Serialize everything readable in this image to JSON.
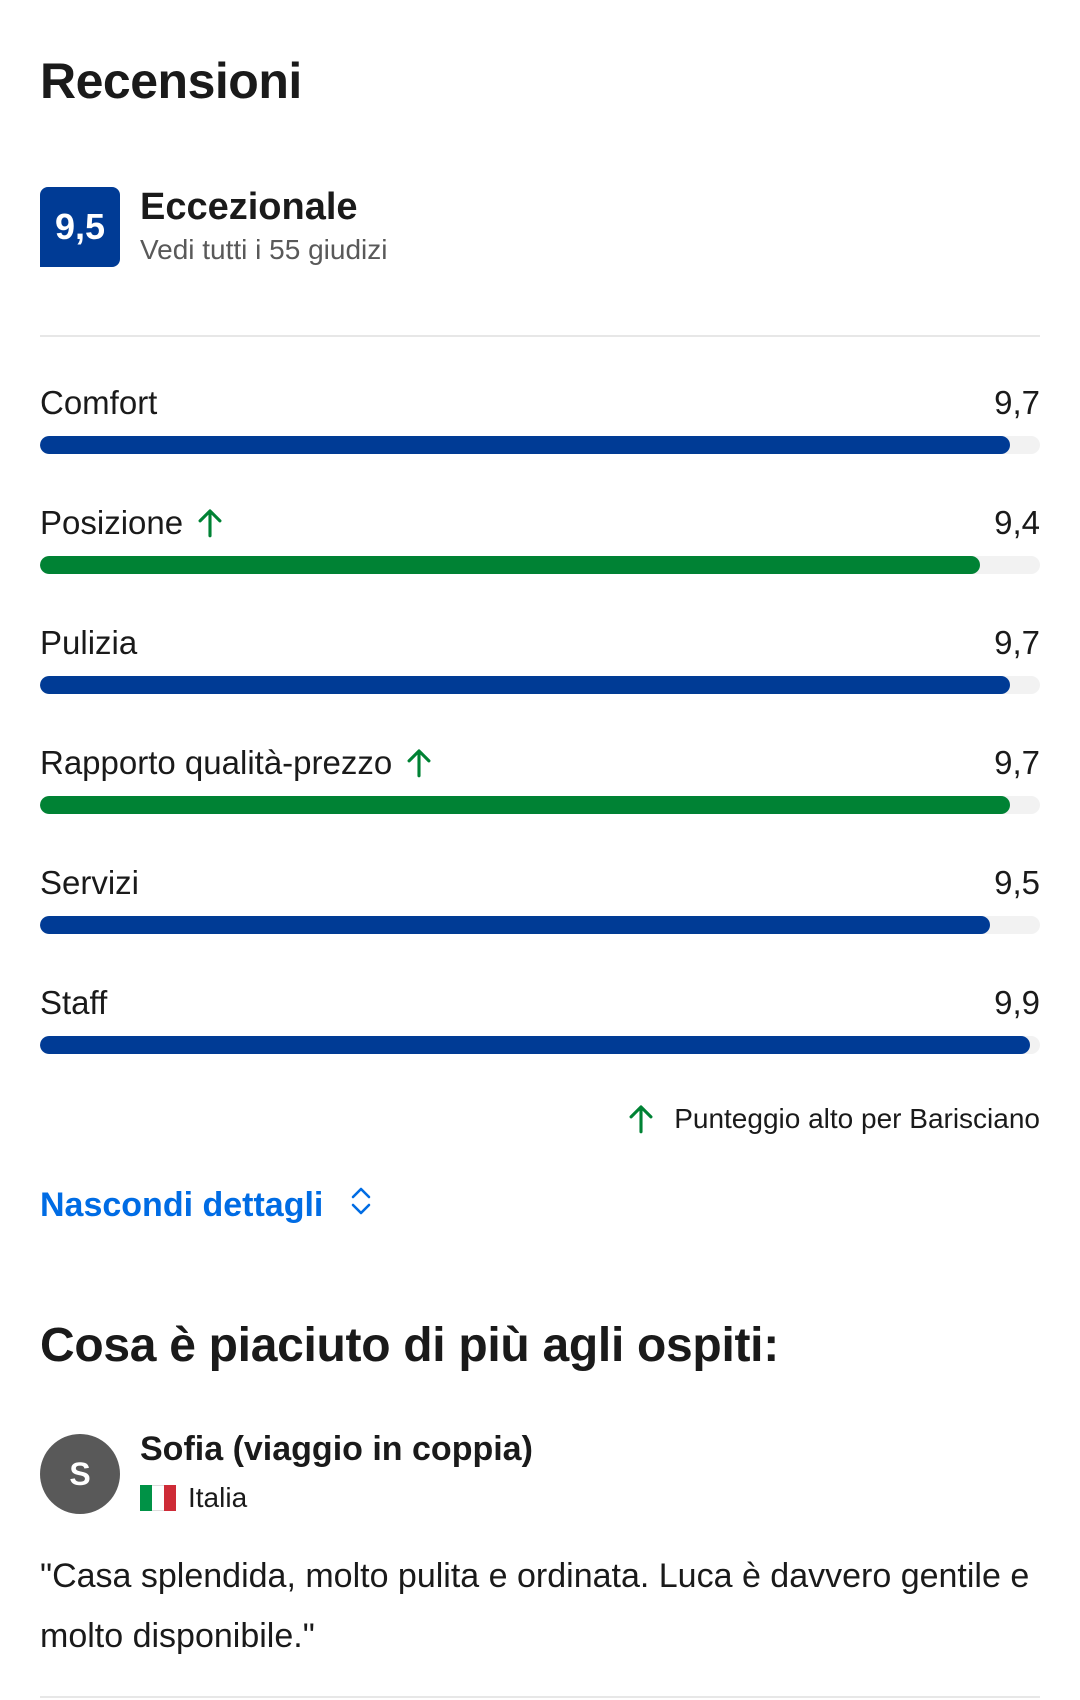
{
  "header": {
    "title": "Recensioni"
  },
  "overall": {
    "score": "9,5",
    "label": "Eccezionale",
    "link": "Vedi tutti i 55 giudizi"
  },
  "colors": {
    "primary": "#003b95",
    "high": "#008234",
    "link": "#006ce4"
  },
  "categories": [
    {
      "label": "Comfort",
      "value": "9,7",
      "fraction": 0.97,
      "high": false
    },
    {
      "label": "Posizione",
      "value": "9,4",
      "fraction": 0.94,
      "high": true
    },
    {
      "label": "Pulizia",
      "value": "9,7",
      "fraction": 0.97,
      "high": false
    },
    {
      "label": "Rapporto qualità-prezzo",
      "value": "9,7",
      "fraction": 0.97,
      "high": true
    },
    {
      "label": "Servizi",
      "value": "9,5",
      "fraction": 0.95,
      "high": false
    },
    {
      "label": "Staff",
      "value": "9,9",
      "fraction": 0.99,
      "high": false
    }
  ],
  "note": {
    "icon": "arrow-up-icon",
    "text": "Punteggio alto per Barisciano"
  },
  "toggle": {
    "label": "Nascondi dettagli",
    "icon": "chevron-up-down-icon"
  },
  "highlights": {
    "title": "Cosa è piaciuto di più agli ospiti:",
    "review": {
      "avatar_letter": "S",
      "name": "Sofia (viaggio in coppia)",
      "country": "Italia",
      "flag": "italy-flag",
      "text": "\"Casa splendida, molto pulita e ordinata. Luca è davvero gentile e molto disponibile.\""
    }
  }
}
